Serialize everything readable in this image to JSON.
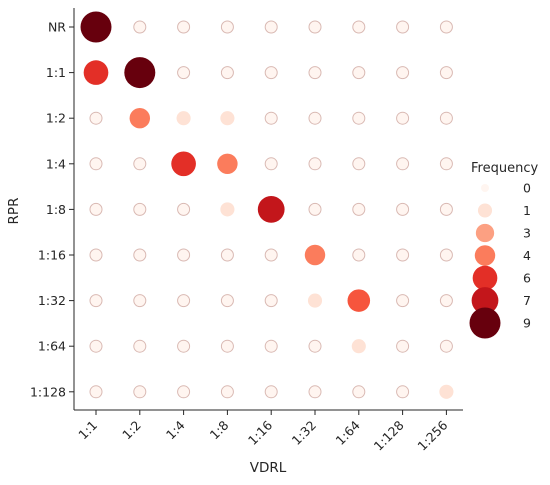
{
  "chart_data": {
    "type": "scatter",
    "subtype": "bubble-matrix",
    "xlabel": "VDRL",
    "ylabel": "RPR",
    "x_categories": [
      "1:1",
      "1:2",
      "1:4",
      "1:8",
      "1:16",
      "1:32",
      "1:64",
      "1:128",
      "1:256"
    ],
    "y_categories": [
      "NR",
      "1:1",
      "1:2",
      "1:4",
      "1:8",
      "1:16",
      "1:32",
      "1:64",
      "1:128"
    ],
    "legend": {
      "title": "Frequency",
      "placement": "right",
      "entries": [
        0,
        1,
        3,
        4,
        6,
        7,
        9
      ]
    },
    "color_scale": {
      "name": "Reds",
      "min": 0,
      "max": 9,
      "low": "#fff5f0",
      "high": "#67000d"
    },
    "grid": false,
    "matrix": [
      [
        9,
        0,
        0,
        0,
        0,
        0,
        0,
        0,
        0
      ],
      [
        6,
        9,
        0,
        0,
        0,
        0,
        0,
        0,
        0
      ],
      [
        0,
        4,
        1,
        1,
        0,
        0,
        0,
        0,
        0
      ],
      [
        0,
        0,
        6,
        4,
        0,
        0,
        0,
        0,
        0
      ],
      [
        0,
        0,
        0,
        1,
        7,
        0,
        0,
        0,
        0
      ],
      [
        0,
        0,
        0,
        0,
        0,
        4,
        0,
        0,
        0
      ],
      [
        0,
        0,
        0,
        0,
        0,
        1,
        5,
        0,
        0
      ],
      [
        0,
        0,
        0,
        0,
        0,
        0,
        1,
        0,
        0
      ],
      [
        0,
        0,
        0,
        0,
        0,
        0,
        0,
        0,
        1
      ]
    ]
  }
}
